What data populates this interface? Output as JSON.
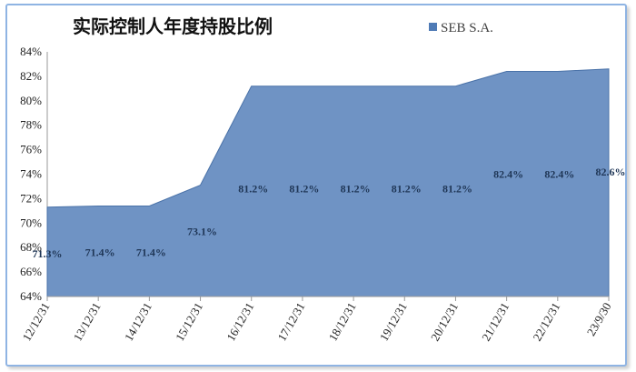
{
  "chart_data": {
    "type": "area",
    "title": "实际控制人年度持股比例",
    "categories": [
      "12/12/31",
      "13/12/31",
      "14/12/31",
      "15/12/31",
      "16/12/31",
      "17/12/31",
      "18/12/31",
      "19/12/31",
      "20/12/31",
      "21/12/31",
      "22/12/31",
      "23/9/30"
    ],
    "series": [
      {
        "name": "SEB S.A.",
        "values": [
          71.3,
          71.4,
          71.4,
          73.1,
          81.2,
          81.2,
          81.2,
          81.2,
          81.2,
          82.4,
          82.4,
          82.6
        ],
        "labels": [
          "71.3%",
          "71.4%",
          "71.4%",
          "73.1%",
          "81.2%",
          "81.2%",
          "81.2%",
          "81.2%",
          "81.2%",
          "82.4%",
          "82.4%",
          "82.6%"
        ]
      }
    ],
    "ylim": [
      64,
      84
    ],
    "yticks": [
      "64%",
      "66%",
      "68%",
      "70%",
      "72%",
      "74%",
      "76%",
      "78%",
      "80%",
      "82%",
      "84%"
    ],
    "legend_position": "top-right",
    "grid": false,
    "colors": {
      "fill": "#6f93c4",
      "stroke": "#4a72a8",
      "legend_marker": "#4f7bb6"
    }
  }
}
